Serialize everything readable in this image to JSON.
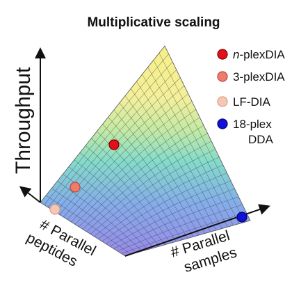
{
  "title": "Multiplicative scaling",
  "axes": {
    "y_label": "Throughput",
    "x_label_left": [
      "# Parallel",
      "peptides"
    ],
    "x_label_right": [
      "# Parallel",
      "samples"
    ]
  },
  "legend": [
    {
      "label_italic": "n",
      "label": "-plexDIA",
      "color": "#e3101a"
    },
    {
      "label_italic": "",
      "label": "3-plexDIA",
      "color": "#f07a6c"
    },
    {
      "label_italic": "",
      "label": "LF-DIA",
      "color": "#f6c7b3"
    },
    {
      "label_italic": "",
      "label": "18-plex",
      "label_line2": "DDA",
      "color": "#1010d8"
    }
  ],
  "points": [
    {
      "name": "n-plexDIA",
      "color": "#e3101a"
    },
    {
      "name": "3-plexDIA",
      "color": "#f07a6c"
    },
    {
      "name": "LF-DIA",
      "color": "#f6c7b3"
    },
    {
      "name": "18-plex DDA",
      "color": "#1010d8"
    }
  ],
  "surface": {
    "gradient_colors": [
      "#8f7fe6",
      "#6fa8e6",
      "#78d8c8",
      "#b6e8a0",
      "#f0ee90",
      "#f4ee7c"
    ]
  }
}
